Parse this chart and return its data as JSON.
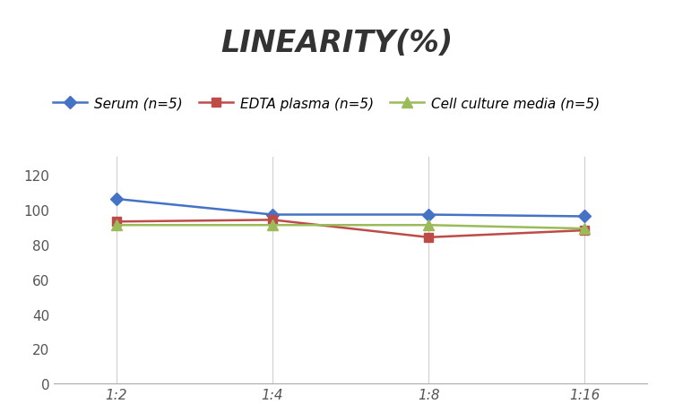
{
  "title": "LINEARITY(%)",
  "x_labels": [
    "1:2",
    "1:4",
    "1:8",
    "1:16"
  ],
  "series": [
    {
      "name": "Serum (n=5)",
      "values": [
        106,
        97,
        97,
        96
      ],
      "color": "#4472C4",
      "marker": "D",
      "marker_size": 7
    },
    {
      "name": "EDTA plasma (n=5)",
      "values": [
        93,
        94,
        84,
        88
      ],
      "color": "#BE4B48",
      "marker": "s",
      "marker_size": 7
    },
    {
      "name": "Cell culture media (n=5)",
      "values": [
        91,
        91,
        91,
        89
      ],
      "color": "#9BBB59",
      "marker": "^",
      "marker_size": 8
    }
  ],
  "ylim": [
    0,
    130
  ],
  "yticks": [
    0,
    20,
    40,
    60,
    80,
    100,
    120
  ],
  "background_color": "#ffffff",
  "grid_color": "#d0d0d0",
  "title_fontsize": 24,
  "legend_fontsize": 11,
  "tick_fontsize": 11
}
